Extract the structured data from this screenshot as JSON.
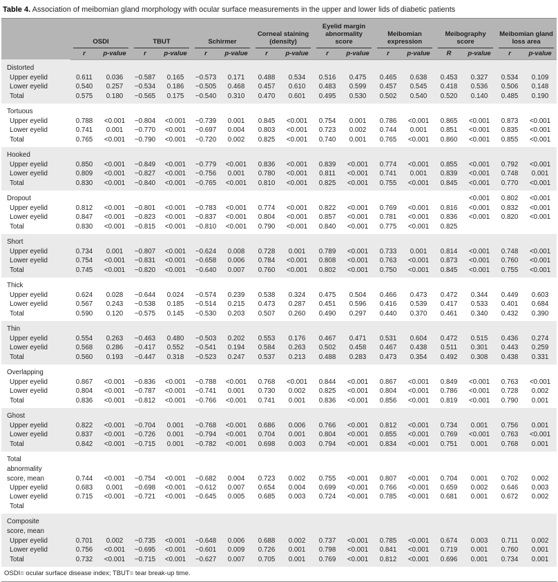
{
  "title": {
    "label": "Table 4.",
    "text": " Association of meibomian gland morphology with ocular surface measurements in the upper and lower lids of diabetic patients"
  },
  "footnote": "OSDI= ocular surface disease index; TBUT= tear break-up time.",
  "columns": [
    {
      "group": "OSDI",
      "r": "r",
      "p": "p-value"
    },
    {
      "group": "TBUT",
      "r": "r",
      "p": "p-value"
    },
    {
      "group": "Schirmer",
      "r": "r",
      "p": "p-value"
    },
    {
      "group": "Corneal staining (density)",
      "r": "r",
      "p": "p-value"
    },
    {
      "group": "Eyelid margin abnormality score",
      "r": "r",
      "p": "p-value"
    },
    {
      "group": "Meibomian expression",
      "r": "r",
      "p": "p-value"
    },
    {
      "group": "Meibography score",
      "r": "R",
      "p": "p-value"
    },
    {
      "group": "Meibomian gland loss area",
      "r": "r",
      "p": "p-value"
    }
  ],
  "sections": [
    {
      "name_lines": [
        "Distorted"
      ],
      "shaded": true,
      "name_values": [],
      "rows": [
        {
          "label": "Upper eyelid",
          "values": [
            "0.611",
            "0.036",
            "−0.587",
            "0.165",
            "−0.573",
            "0.171",
            "0.488",
            "0.534",
            "0.516",
            "0.475",
            "0.465",
            "0.638",
            "0.453",
            "0.327",
            "0.534",
            "0.109"
          ]
        },
        {
          "label": "Lower eyelid",
          "values": [
            "0.540",
            "0.257",
            "−0.534",
            "0.186",
            "−0.505",
            "0.468",
            "0.457",
            "0.610",
            "0.483",
            "0.599",
            "0.457",
            "0.545",
            "0.418",
            "0.536",
            "0.506",
            "0.148"
          ]
        },
        {
          "label": "Total",
          "values": [
            "0.575",
            "0.180",
            "−0.565",
            "0.175",
            "−0.540",
            "0.310",
            "0.470",
            "0.601",
            "0.495",
            "0.530",
            "0.502",
            "0.540",
            "0.520",
            "0.140",
            "0.485",
            "0.190"
          ]
        }
      ]
    },
    {
      "name_lines": [
        "Tortuous"
      ],
      "shaded": false,
      "name_values": [],
      "rows": [
        {
          "label": "Upper eyelid",
          "values": [
            "0.788",
            "<0.001",
            "−0.804",
            "<0.001",
            "−0.739",
            "0.001",
            "0.845",
            "<0.001",
            "0.754",
            "0.001",
            "0.786",
            "<0.001",
            "0.865",
            "<0.001",
            "0.873",
            "<0.001"
          ]
        },
        {
          "label": "Lower eyelid",
          "values": [
            "0.741",
            "0.001",
            "−0.770",
            "<0.001",
            "−0.697",
            "0.004",
            "0.803",
            "<0.001",
            "0.723",
            "0.002",
            "0.744",
            "0.001",
            "0.851",
            "<0.001",
            "0.835",
            "<0.001"
          ]
        },
        {
          "label": "Total",
          "values": [
            "0.765",
            "<0.001",
            "−0.790",
            "<0.001",
            "−0.720",
            "0.002",
            "0.825",
            "<0.001",
            "0.740",
            "0.001",
            "0.765",
            "<0.001",
            "0.860",
            "<0.001",
            "0.855",
            "<0.001"
          ]
        }
      ]
    },
    {
      "name_lines": [
        "Hooked"
      ],
      "shaded": true,
      "name_values": [],
      "rows": [
        {
          "label": "Upper eyelid",
          "values": [
            "0.850",
            "<0.001",
            "−0.849",
            "<0.001",
            "−0.779",
            "<0.001",
            "0.836",
            "<0.001",
            "0.839",
            "<0.001",
            "0.774",
            "<0.001",
            "0.855",
            "<0.001",
            "0.792",
            "<0.001"
          ]
        },
        {
          "label": "Lower eyelid",
          "values": [
            "0.809",
            "<0.001",
            "−0.827",
            "<0.001",
            "−0.756",
            "0.001",
            "0.780",
            "<0.001",
            "0.811",
            "<0.001",
            "0.741",
            "0.001",
            "0.839",
            "<0.001",
            "0.748",
            "0.001"
          ]
        },
        {
          "label": "Total",
          "values": [
            "0.830",
            "<0.001",
            "−0.840",
            "<0.001",
            "−0.765",
            "<0.001",
            "0.810",
            "<0.001",
            "0.825",
            "<0.001",
            "0.755",
            "<0.001",
            "0.845",
            "<0.001",
            "0.770",
            "<0.001"
          ]
        }
      ]
    },
    {
      "name_lines": [
        "Dropout"
      ],
      "shaded": false,
      "name_values": [
        "",
        "",
        "",
        "",
        "",
        "",
        "",
        "",
        "",
        "",
        "",
        "",
        "",
        "<0.001",
        "0.802",
        "<0.001"
      ],
      "rows": [
        {
          "label": "Upper eyelid",
          "values": [
            "0.812",
            "<0.001",
            "−0.801",
            "<0.001",
            "−0.783",
            "<0.001",
            "0.774",
            "<0.001",
            "0.822",
            "<0.001",
            "0.769",
            "<0.001",
            "0.816",
            "<0.001",
            "0.832",
            "<0.001"
          ]
        },
        {
          "label": "Lower eyelid",
          "values": [
            "0.847",
            "<0.001",
            "−0.823",
            "<0.001",
            "−0.837",
            "<0.001",
            "0.804",
            "<0.001",
            "0.857",
            "<0.001",
            "0.781",
            "<0.001",
            "0.836",
            "<0.001",
            "0.820",
            "<0.001"
          ]
        },
        {
          "label": "Total",
          "values": [
            "0.830",
            "<0.001",
            "−0.815",
            "<0.001",
            "−0.810",
            "<0.001",
            "0.790",
            "<0.001",
            "0.840",
            "<0.001",
            "0.775",
            "<0.001",
            "0.825",
            "",
            "",
            ""
          ]
        }
      ]
    },
    {
      "name_lines": [
        "Short"
      ],
      "shaded": true,
      "name_values": [],
      "rows": [
        {
          "label": "Upper eyelid",
          "values": [
            "0.734",
            "0.001",
            "−0.807",
            "<0.001",
            "−0.624",
            "0.008",
            "0.728",
            "0.001",
            "0.789",
            "<0.001",
            "0.733",
            "0.001",
            "0.814",
            "<0.001",
            "0.748",
            "<0.001"
          ]
        },
        {
          "label": "Lower eyelid",
          "values": [
            "0.754",
            "<0.001",
            "−0.831",
            "<0.001",
            "−0.658",
            "0.006",
            "0.784",
            "<0.001",
            "0.808",
            "<0.001",
            "0.763",
            "<0.001",
            "0.873",
            "<0.001",
            "0.760",
            "<0.001"
          ]
        },
        {
          "label": "Total",
          "values": [
            "0.745",
            "<0.001",
            "−0.820",
            "<0.001",
            "−0.640",
            "0.007",
            "0.760",
            "<0.001",
            "0.802",
            "<0.001",
            "0.750",
            "<0.001",
            "0.845",
            "<0.001",
            "0.755",
            "<0.001"
          ]
        }
      ]
    },
    {
      "name_lines": [
        "Thick"
      ],
      "shaded": false,
      "name_values": [],
      "rows": [
        {
          "label": "Upper eyelid",
          "values": [
            "0.624",
            "0.028",
            "−0.644",
            "0.024",
            "−0.574",
            "0.239",
            "0.538",
            "0.324",
            "0.475",
            "0.504",
            "0.466",
            "0.473",
            "0.472",
            "0.344",
            "0.449",
            "0.603"
          ]
        },
        {
          "label": "Lower eyelid",
          "values": [
            "0.567",
            "0.243",
            "−0.538",
            "0.185",
            "−0.514",
            "0.215",
            "0.473",
            "0.287",
            "0.451",
            "0.596",
            "0.416",
            "0.539",
            "0.417",
            "0.533",
            "0.401",
            "0.684"
          ]
        },
        {
          "label": "Total",
          "values": [
            "0.590",
            "0.120",
            "−0.575",
            "0.145",
            "−0.530",
            "0.203",
            "0.507",
            "0.260",
            "0.490",
            "0.297",
            "0.440",
            "0.370",
            "0.461",
            "0.340",
            "0.432",
            "0.390"
          ]
        }
      ]
    },
    {
      "name_lines": [
        "Thin"
      ],
      "shaded": true,
      "name_values": [],
      "rows": [
        {
          "label": "Upper eyelid",
          "values": [
            "0.554",
            "0.263",
            "−0.463",
            "0.480",
            "−0.503",
            "0.202",
            "0.553",
            "0.176",
            "0.467",
            "0.471",
            "0.531",
            "0.604",
            "0.472",
            "0.515",
            "0.436",
            "0.274"
          ]
        },
        {
          "label": "Lower eyelid",
          "values": [
            "0.568",
            "0.286",
            "−0.417",
            "0.552",
            "−0.541",
            "0.194",
            "0.584",
            "0.263",
            "0.502",
            "0.458",
            "0.467",
            "0.438",
            "0.511",
            "0.301",
            "0.443",
            "0.259"
          ]
        },
        {
          "label": "Total",
          "values": [
            "0.560",
            "0.193",
            "−0.447",
            "0.318",
            "−0.523",
            "0.247",
            "0.537",
            "0.213",
            "0.488",
            "0.283",
            "0.473",
            "0.354",
            "0.492",
            "0.308",
            "0.438",
            "0.331"
          ]
        }
      ]
    },
    {
      "name_lines": [
        "Overlapping"
      ],
      "shaded": false,
      "name_values": [],
      "rows": [
        {
          "label": "Upper eyelid",
          "values": [
            "0.867",
            "<0.001",
            "−0.836",
            "<0.001",
            "−0.788",
            "<0.001",
            "0.768",
            "<0.001",
            "0.844",
            "<0.001",
            "0.867",
            "<0.001",
            "0.849",
            "<0.001",
            "0.763",
            "<0.001"
          ]
        },
        {
          "label": "Lower eyelid",
          "values": [
            "0.804",
            "<0.001",
            "−0.787",
            "<0.001",
            "−0.741",
            "0.001",
            "0.730",
            "0.002",
            "0.825",
            "<0.001",
            "0.804",
            "<0.001",
            "0.786",
            "<0.001",
            "0.728",
            "0.002"
          ]
        },
        {
          "label": "Total",
          "values": [
            "0.836",
            "<0.001",
            "−0.812",
            "<0.001",
            "−0.766",
            "<0.001",
            "0.741",
            "0.001",
            "0.836",
            "<0.001",
            "0.856",
            "<0.001",
            "0.819",
            "<0.001",
            "0.790",
            "0.001"
          ]
        }
      ]
    },
    {
      "name_lines": [
        "Ghost"
      ],
      "shaded": true,
      "name_values": [],
      "rows": [
        {
          "label": "Upper eyelid",
          "values": [
            "0.822",
            "<0.001",
            "−0.704",
            "0.001",
            "−0.768",
            "<0.001",
            "0.686",
            "0.006",
            "0.766",
            "<0.001",
            "0.812",
            "<0.001",
            "0.734",
            "0.001",
            "0.756",
            "0.001"
          ]
        },
        {
          "label": "Lower eyelid",
          "values": [
            "0.837",
            "<0.001",
            "−0.726",
            "0.001",
            "−0.794",
            "<0.001",
            "0.704",
            "0.001",
            "0.804",
            "<0.001",
            "0.855",
            "<0.001",
            "0.769",
            "<0.001",
            "0.763",
            "<0.001"
          ]
        },
        {
          "label": "Total",
          "values": [
            "0.842",
            "<0.001",
            "−0.715",
            "0.001",
            "−0.782",
            "<0.001",
            "0.698",
            "0.003",
            "0.794",
            "<0.001",
            "0.834",
            "<0.001",
            "0.751",
            "0.001",
            "0.768",
            "0.001"
          ]
        }
      ]
    },
    {
      "name_lines": [
        "Total",
        "abnormality"
      ],
      "shaded": false,
      "name_values": [],
      "rows": [
        {
          "label": "score, mean",
          "indent": false,
          "values": [
            "0.744",
            "<0.001",
            "−0.754",
            "<0.001",
            "−0.682",
            "0.004",
            "0.723",
            "0.002",
            "0.755",
            "<0.001",
            "0.807",
            "<0.001",
            "0.704",
            "0.001",
            "0.702",
            "0.002"
          ]
        },
        {
          "label": "Upper eyelid",
          "values": [
            "0.683",
            "0.001",
            "−0.698",
            "<0.001",
            "−0.612",
            "0.007",
            "0.654",
            "0.004",
            "0.699",
            "<0.001",
            "0.766",
            "<0.001",
            "0.659",
            "0.002",
            "0.646",
            "0.003"
          ]
        },
        {
          "label": "Lower eyelid",
          "values": [
            "0.715",
            "<0.001",
            "−0.721",
            "<0.001",
            "−0.645",
            "0.005",
            "0.685",
            "0.003",
            "0.724",
            "<0.001",
            "0.785",
            "<0.001",
            "0.681",
            "0.001",
            "0.672",
            "0.002"
          ]
        },
        {
          "label": "Total",
          "values": [
            "",
            "",
            "",
            "",
            "",
            "",
            "",
            "",
            "",
            "",
            "",
            "",
            "",
            "",
            "",
            ""
          ]
        }
      ]
    },
    {
      "name_lines": [
        "Composite",
        "score, mean"
      ],
      "shaded": true,
      "name_values": [],
      "rows": [
        {
          "label": "Upper eyelid",
          "values": [
            "0.701",
            "0.002",
            "−0.735",
            "<0.001",
            "−0.648",
            "0.006",
            "0.688",
            "0.002",
            "0.737",
            "<0.001",
            "0.785",
            "<0.001",
            "0.674",
            "0.003",
            "0.711",
            "0.002"
          ]
        },
        {
          "label": "Lower eyelid",
          "values": [
            "0.756",
            "<0.001",
            "−0.695",
            "<0.001",
            "−0.601",
            "0.009",
            "0.726",
            "0.001",
            "0.798",
            "<0.001",
            "0.841",
            "<0.001",
            "0.719",
            "0.001",
            "0.760",
            "0.001"
          ]
        },
        {
          "label": "Total",
          "values": [
            "0.732",
            "<0.001",
            "−0.715",
            "<0.001",
            "−0.627",
            "0.007",
            "0.705",
            "0.001",
            "0.769",
            "<0.001",
            "0.812",
            "<0.001",
            "0.696",
            "0.001",
            "0.734",
            "0.001"
          ]
        }
      ]
    }
  ]
}
